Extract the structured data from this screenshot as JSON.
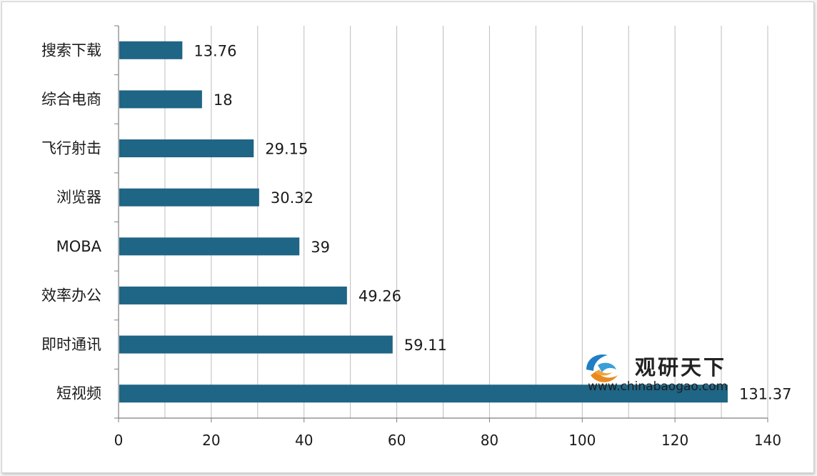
{
  "chart_data": {
    "type": "bar",
    "orientation": "horizontal",
    "categories": [
      "搜索下载",
      "综合电商",
      "飞行射击",
      "浏览器",
      "MOBA",
      "效率办公",
      "即时通讯",
      "短视频"
    ],
    "values": [
      13.76,
      18,
      29.15,
      30.32,
      39,
      49.26,
      59.11,
      131.37
    ],
    "value_labels": [
      "13.76",
      "18",
      "29.15",
      "30.32",
      "39",
      "49.26",
      "59.11",
      "131.37"
    ],
    "xlim": [
      0,
      140
    ],
    "x_ticks": [
      0,
      20,
      40,
      60,
      80,
      100,
      120,
      140
    ],
    "x_tick_labels": [
      "0",
      "20",
      "40",
      "60",
      "80",
      "100",
      "120",
      "140"
    ],
    "gridlines": "vertical",
    "bar_color": "#1f6585",
    "title": "",
    "xlabel": "",
    "ylabel": ""
  },
  "watermark": {
    "brand_cn": "观研天下",
    "url": "www.chinabaogao.com",
    "icon": "chinabaogao-swirl-logo-icon"
  }
}
